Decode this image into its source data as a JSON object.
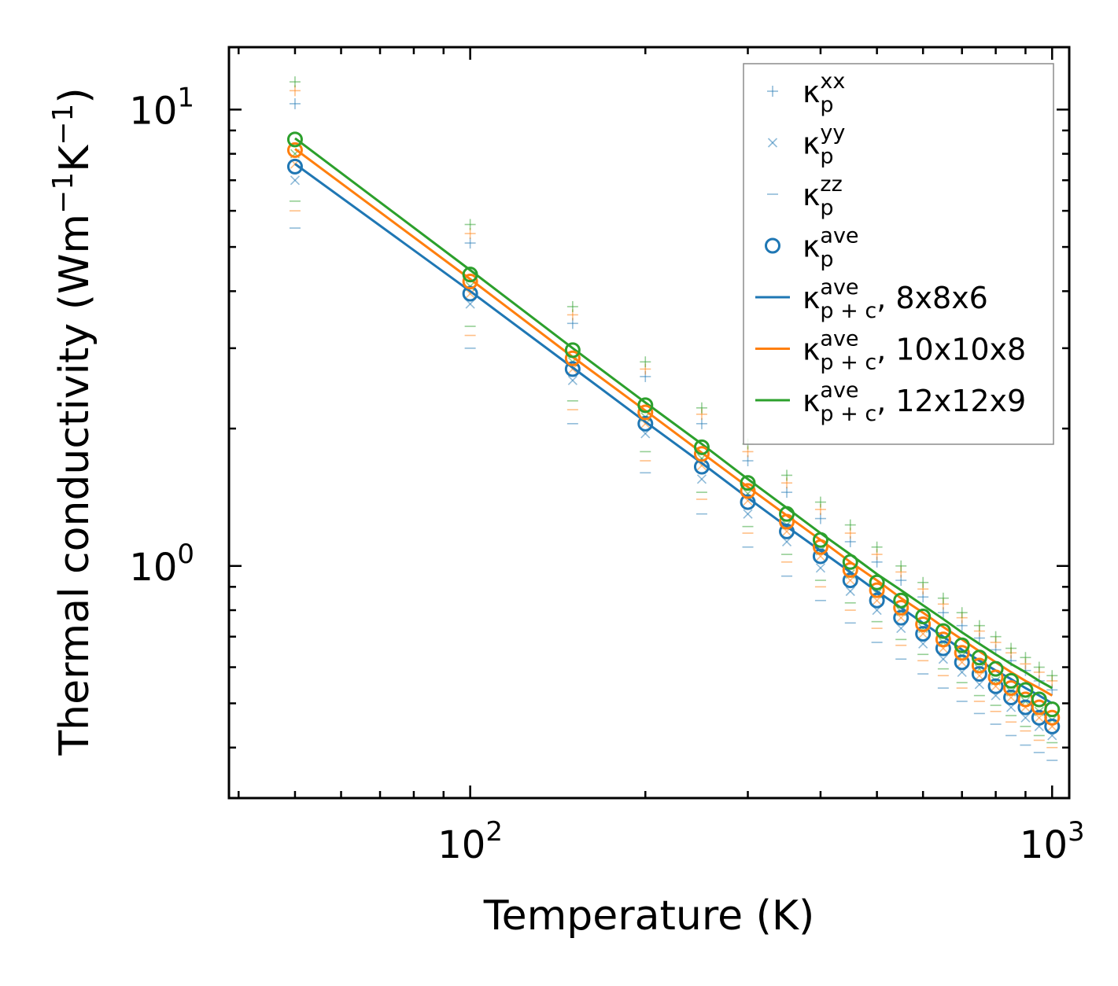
{
  "chart_data": {
    "type": "scatter",
    "title": "",
    "xlabel": "Temperature (K)",
    "ylabel_main": "Thermal conductivity (Wm",
    "ylabel_exp1": "−1",
    "ylabel_mid": "K",
    "ylabel_exp2": "−1",
    "ylabel_end": ")",
    "xscale": "log",
    "yscale": "log",
    "xlim": [
      38.5,
      1070
    ],
    "ylim": [
      0.31,
      13.7
    ],
    "xticks": [
      {
        "value": 100,
        "base": "10",
        "exp": "2"
      },
      {
        "value": 1000,
        "base": "10",
        "exp": "3"
      }
    ],
    "yticks": [
      {
        "value": 1,
        "base": "10",
        "exp": "0"
      },
      {
        "value": 10,
        "base": "10",
        "exp": "1"
      }
    ],
    "legend_position": "top-right",
    "legend": [
      {
        "key": "xx",
        "marker": "plus",
        "base": "κ",
        "sup": "xx",
        "sub": "p",
        "suffix": ""
      },
      {
        "key": "yy",
        "marker": "x",
        "base": "κ",
        "sup": "yy",
        "sub": "p",
        "suffix": ""
      },
      {
        "key": "zz",
        "marker": "dash",
        "base": "κ",
        "sup": "zz",
        "sub": "p",
        "suffix": ""
      },
      {
        "key": "ave",
        "marker": "circle",
        "base": "κ",
        "sup": "ave",
        "sub": "p",
        "suffix": ""
      },
      {
        "key": "fit1",
        "marker": "line",
        "color": "#1f77b4",
        "base": "κ",
        "sup": "ave",
        "sub": "p + c",
        "suffix": ", 8x8x6"
      },
      {
        "key": "fit2",
        "marker": "line",
        "color": "#ff7f0e",
        "base": "κ",
        "sup": "ave",
        "sub": "p + c",
        "suffix": ", 10x10x8"
      },
      {
        "key": "fit3",
        "marker": "line",
        "color": "#2ca02c",
        "base": "κ",
        "sup": "ave",
        "sub": "p + c",
        "suffix": ", 12x12x9"
      }
    ],
    "x": [
      50,
      100,
      150,
      200,
      250,
      300,
      350,
      400,
      450,
      500,
      550,
      600,
      650,
      700,
      750,
      800,
      850,
      900,
      950,
      1000
    ],
    "series": [
      {
        "name": "8x8x6",
        "color": "#1f77b4",
        "ave": [
          7.5,
          3.95,
          2.7,
          2.05,
          1.65,
          1.38,
          1.19,
          1.05,
          0.93,
          0.84,
          0.77,
          0.71,
          0.66,
          0.615,
          0.58,
          0.545,
          0.515,
          0.49,
          0.465,
          0.445
        ],
        "xx": [
          10.3,
          5.1,
          3.4,
          2.6,
          2.05,
          1.7,
          1.45,
          1.27,
          1.13,
          1.02,
          0.93,
          0.855,
          0.79,
          0.74,
          0.695,
          0.655,
          0.62,
          0.59,
          0.56,
          0.535
        ],
        "yy": [
          7.0,
          3.75,
          2.55,
          1.95,
          1.55,
          1.3,
          1.13,
          0.99,
          0.88,
          0.8,
          0.73,
          0.675,
          0.625,
          0.585,
          0.55,
          0.52,
          0.49,
          0.465,
          0.445,
          0.425
        ],
        "zz": [
          5.5,
          3.0,
          2.05,
          1.6,
          1.3,
          1.1,
          0.95,
          0.84,
          0.75,
          0.68,
          0.625,
          0.58,
          0.54,
          0.505,
          0.475,
          0.45,
          0.425,
          0.405,
          0.39,
          0.375
        ],
        "fit": [
          7.6,
          4.0,
          2.72,
          2.07,
          1.68,
          1.41,
          1.22,
          1.08,
          0.97,
          0.88,
          0.81,
          0.75,
          0.7,
          0.655,
          0.62,
          0.59,
          0.565,
          0.54,
          0.52,
          0.5
        ]
      },
      {
        "name": "10x10x8",
        "color": "#ff7f0e",
        "ave": [
          8.15,
          4.2,
          2.85,
          2.17,
          1.76,
          1.46,
          1.25,
          1.1,
          0.98,
          0.885,
          0.81,
          0.745,
          0.69,
          0.645,
          0.605,
          0.57,
          0.54,
          0.51,
          0.49,
          0.465
        ],
        "xx": [
          11.0,
          5.35,
          3.55,
          2.7,
          2.15,
          1.78,
          1.52,
          1.33,
          1.18,
          1.06,
          0.97,
          0.89,
          0.825,
          0.77,
          0.72,
          0.68,
          0.645,
          0.61,
          0.585,
          0.56
        ],
        "yy": [
          7.6,
          3.95,
          2.7,
          2.05,
          1.66,
          1.39,
          1.19,
          1.05,
          0.93,
          0.84,
          0.77,
          0.71,
          0.66,
          0.615,
          0.575,
          0.545,
          0.515,
          0.49,
          0.465,
          0.445
        ],
        "zz": [
          6.0,
          3.2,
          2.2,
          1.7,
          1.4,
          1.18,
          1.02,
          0.9,
          0.8,
          0.73,
          0.67,
          0.62,
          0.575,
          0.54,
          0.505,
          0.48,
          0.455,
          0.435,
          0.415,
          0.4
        ],
        "fit": [
          8.2,
          4.25,
          2.87,
          2.19,
          1.77,
          1.49,
          1.29,
          1.14,
          1.02,
          0.93,
          0.85,
          0.79,
          0.735,
          0.69,
          0.65,
          0.615,
          0.585,
          0.56,
          0.54,
          0.52
        ]
      },
      {
        "name": "12x12x9",
        "color": "#2ca02c",
        "ave": [
          8.6,
          4.35,
          2.97,
          2.25,
          1.82,
          1.52,
          1.3,
          1.14,
          1.02,
          0.92,
          0.84,
          0.775,
          0.72,
          0.67,
          0.63,
          0.595,
          0.56,
          0.535,
          0.51,
          0.485
        ],
        "xx": [
          11.5,
          5.6,
          3.7,
          2.8,
          2.22,
          1.85,
          1.58,
          1.38,
          1.23,
          1.1,
          1.0,
          0.92,
          0.85,
          0.79,
          0.74,
          0.7,
          0.66,
          0.63,
          0.6,
          0.575
        ],
        "yy": [
          8.0,
          4.1,
          2.8,
          2.12,
          1.72,
          1.44,
          1.23,
          1.08,
          0.96,
          0.87,
          0.795,
          0.73,
          0.68,
          0.635,
          0.595,
          0.56,
          0.53,
          0.505,
          0.48,
          0.46
        ],
        "zz": [
          6.3,
          3.35,
          2.3,
          1.78,
          1.45,
          1.22,
          1.06,
          0.93,
          0.83,
          0.755,
          0.69,
          0.64,
          0.595,
          0.555,
          0.52,
          0.495,
          0.47,
          0.445,
          0.425,
          0.41
        ],
        "fit": [
          8.65,
          4.45,
          3.0,
          2.28,
          1.85,
          1.55,
          1.34,
          1.18,
          1.06,
          0.96,
          0.885,
          0.82,
          0.765,
          0.715,
          0.675,
          0.64,
          0.61,
          0.585,
          0.56,
          0.54
        ]
      }
    ]
  }
}
